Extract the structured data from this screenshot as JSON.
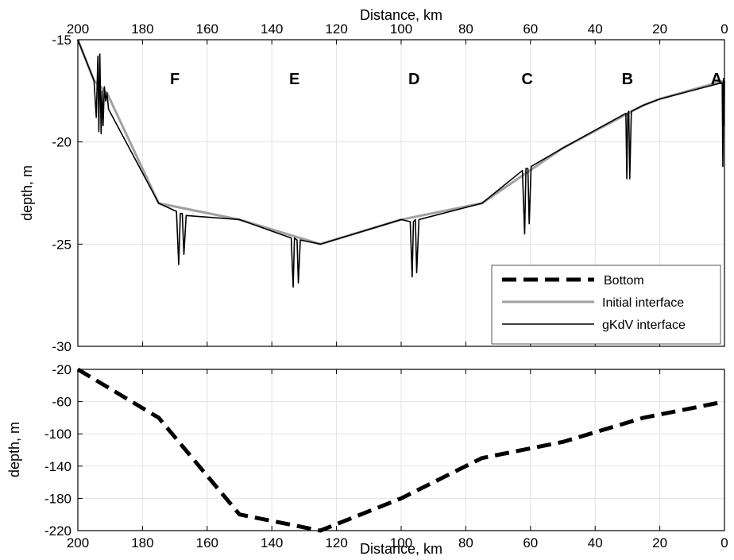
{
  "chart_data": [
    {
      "type": "line",
      "id": "interface",
      "xlabel": "Distance, km",
      "ylabel": "depth, m",
      "xlim": [
        200,
        0
      ],
      "ylim": [
        -30,
        -15
      ],
      "x_ticks": [
        200,
        180,
        160,
        140,
        120,
        100,
        80,
        60,
        40,
        20,
        0
      ],
      "y_ticks": [
        -15,
        -20,
        -25,
        -30
      ],
      "grid": true,
      "legend_position": "bottom-right",
      "markers": [
        {
          "label": "F",
          "x": 170
        },
        {
          "label": "E",
          "x": 133
        },
        {
          "label": "D",
          "x": 96
        },
        {
          "label": "C",
          "x": 61
        },
        {
          "label": "B",
          "x": 30
        },
        {
          "label": "A",
          "x": 0
        }
      ],
      "series": [
        {
          "name": "Bottom",
          "style": "dashed",
          "color": "#000000",
          "x": [],
          "y": []
        },
        {
          "name": "Initial interface",
          "style": "solid",
          "color": "#a0a0a0",
          "x": [
            200,
            195,
            191,
            175,
            150,
            125,
            100,
            75,
            50,
            25,
            20,
            0
          ],
          "y": [
            -15.0,
            -17.0,
            -17.6,
            -23.0,
            -23.8,
            -25.0,
            -23.8,
            -23.0,
            -20.3,
            -18.2,
            -17.9,
            -17.0
          ]
        },
        {
          "name": "gKdV interface",
          "style": "solid",
          "color": "#000000",
          "x": [
            200,
            195,
            194.3,
            193.8,
            193.5,
            193.2,
            192.8,
            192.5,
            192.2,
            191.8,
            191.4,
            191,
            190.5,
            175,
            169.5,
            168.8,
            168.3,
            167.7,
            167.2,
            166.5,
            150,
            134,
            133.4,
            133,
            132.2,
            131.8,
            131.2,
            125,
            100,
            97.2,
            96.6,
            96.2,
            95.6,
            95.2,
            94.5,
            75,
            62.5,
            61.8,
            61.4,
            60.8,
            60.4,
            59.8,
            50,
            30.5,
            30.2,
            29.9,
            29.6,
            29.3,
            28.8,
            25,
            20,
            0.7,
            0.5,
            0.3,
            0.1,
            0
          ],
          "y": [
            -15.0,
            -17.0,
            -18.8,
            -15.8,
            -19.5,
            -15.7,
            -19.6,
            -17.5,
            -19.2,
            -17.3,
            -18.0,
            -17.6,
            -18.4,
            -23.0,
            -23.4,
            -26.0,
            -23.5,
            -23.5,
            -25.5,
            -23.6,
            -23.8,
            -24.7,
            -27.1,
            -24.7,
            -24.8,
            -26.9,
            -24.8,
            -25.0,
            -23.8,
            -23.9,
            -26.6,
            -23.9,
            -23.8,
            -26.4,
            -23.8,
            -23.0,
            -21.4,
            -24.5,
            -21.3,
            -21.3,
            -24.0,
            -21.2,
            -20.3,
            -18.6,
            -21.8,
            -18.6,
            -18.5,
            -21.8,
            -18.5,
            -18.2,
            -17.9,
            -17.1,
            -21.2,
            -16.9,
            -19.2,
            -17.0
          ]
        }
      ]
    },
    {
      "type": "line",
      "id": "bottom",
      "xlabel": "Distance, km",
      "ylabel": "depth, m",
      "xlim": [
        200,
        0
      ],
      "ylim": [
        -220,
        -20
      ],
      "x_ticks": [
        200,
        180,
        160,
        140,
        120,
        100,
        80,
        60,
        40,
        20,
        0
      ],
      "y_ticks": [
        -20,
        -60,
        -100,
        -140,
        -180,
        -220
      ],
      "grid": true,
      "series": [
        {
          "name": "Bottom",
          "style": "dashed",
          "color": "#000000",
          "x": [
            200,
            175,
            150,
            125,
            100,
            75,
            50,
            25,
            0
          ],
          "y": [
            -20,
            -80,
            -200,
            -220,
            -180,
            -130,
            -110,
            -80,
            -60
          ]
        }
      ]
    }
  ]
}
